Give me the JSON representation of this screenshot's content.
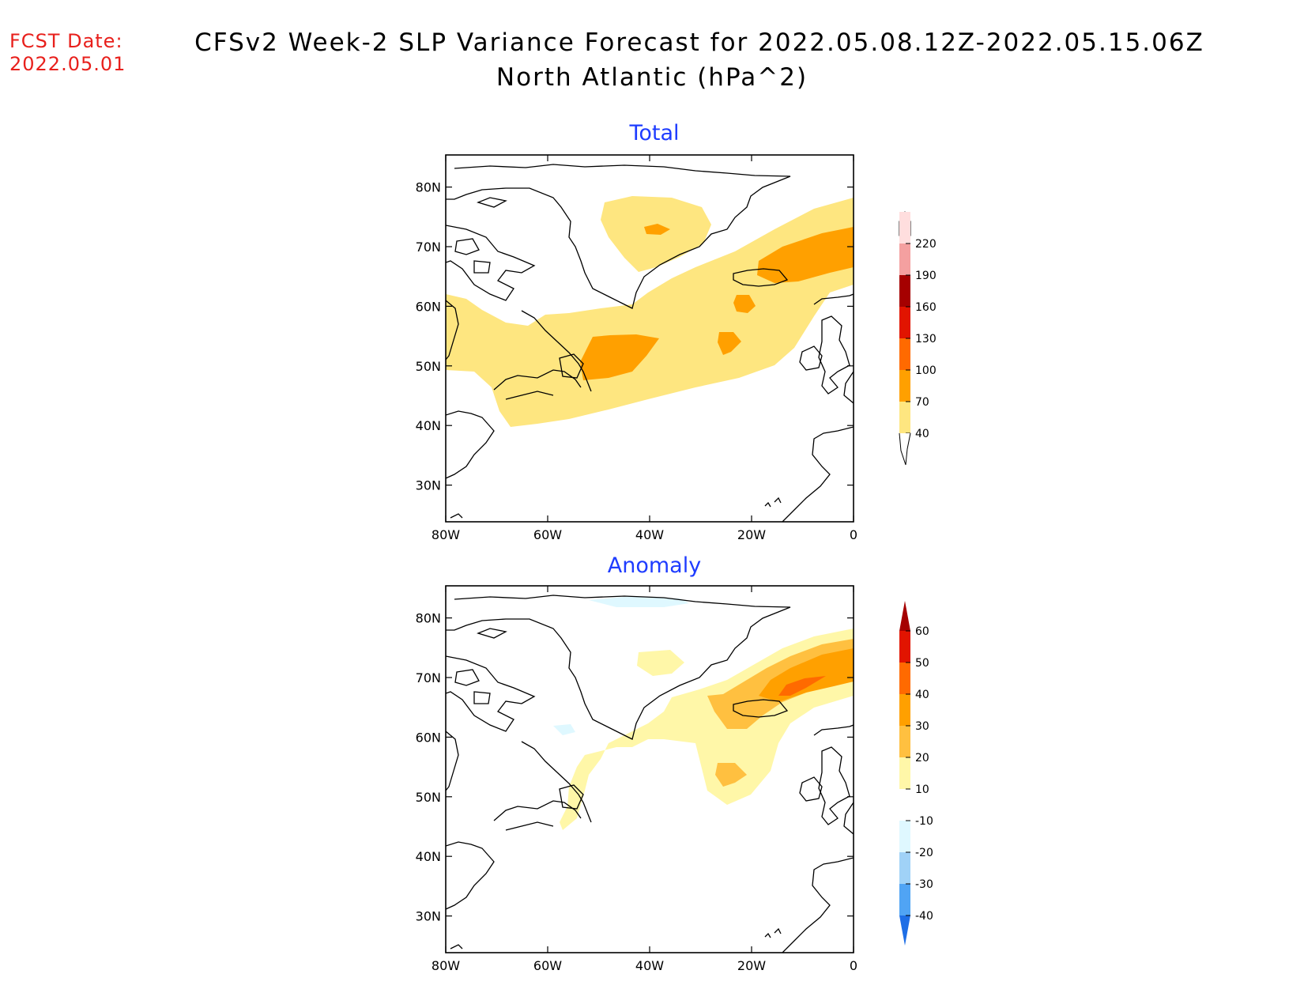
{
  "header": {
    "fcst_label": "FCST Date:",
    "fcst_date": "2022.05.01",
    "title_line1": "CFSv2 Week-2 SLP Variance Forecast for 2022.05.08.12Z-2022.05.15.06Z",
    "title_line2": "North Atlantic (hPa^2)"
  },
  "axes": {
    "lat_labels": [
      "80N",
      "70N",
      "60N",
      "50N",
      "40N",
      "30N"
    ],
    "lon_labels": [
      "80W",
      "60W",
      "40W",
      "20W",
      "0"
    ]
  },
  "panels": [
    {
      "title": "Total",
      "colorbar": {
        "levels": [
          "40",
          "70",
          "100",
          "130",
          "160",
          "190",
          "220"
        ],
        "colors": [
          "#fee680",
          "#ffa000",
          "#ff6a00",
          "#e11400",
          "#a50000",
          "#f4a0a0",
          "#ffdede"
        ]
      }
    },
    {
      "title": "Anomaly",
      "colorbar": {
        "levels": [
          "60",
          "50",
          "40",
          "30",
          "20",
          "10",
          "-10",
          "-20",
          "-30",
          "-40"
        ],
        "colors": [
          "#a50000",
          "#e11400",
          "#ff6a00",
          "#ffa000",
          "#ffc040",
          "#fff7a8",
          "#ffffff",
          "#dff8ff",
          "#a0d2f7",
          "#50a4f4",
          "#1e6ee6"
        ]
      }
    }
  ],
  "colors": {
    "title_text": "#1e3cff",
    "fcst_text": "#e8201c"
  }
}
